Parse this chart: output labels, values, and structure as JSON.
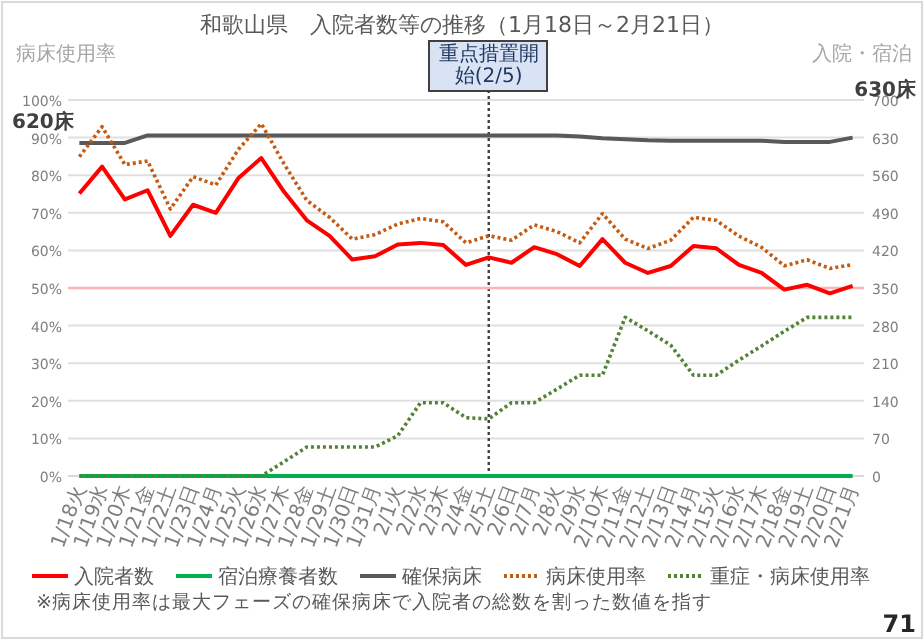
{
  "chart_data": {
    "type": "line",
    "title": "和歌山県　入院者数等の推移（1月18日～2月21日）",
    "ylabel": "病床使用率",
    "y2label": "入院・宿泊",
    "categories": [
      "1/18火",
      "1/19水",
      "1/20木",
      "1/21金",
      "1/22土",
      "1/23日",
      "1/24月",
      "1/25火",
      "1/26水",
      "1/27木",
      "1/28金",
      "1/29土",
      "1/30日",
      "1/31月",
      "2/1火",
      "2/2水",
      "2/3木",
      "2/4金",
      "2/5土",
      "2/6日",
      "2/7月",
      "2/8火",
      "2/9水",
      "2/10木",
      "2/11金",
      "2/12土",
      "2/13日",
      "2/14月",
      "2/15火",
      "2/16水",
      "2/17木",
      "2/18金",
      "2/19土",
      "2/20日",
      "2/21月"
    ],
    "series": [
      {
        "name": "入院者数",
        "color": "#ff0000",
        "axis": "y2",
        "line_style": "solid",
        "values": [
          526,
          576,
          515,
          532,
          447,
          505,
          490,
          555,
          592,
          529,
          476,
          447,
          403,
          409,
          431,
          434,
          430,
          393,
          407,
          397,
          426,
          413,
          391,
          441,
          397,
          378,
          391,
          428,
          424,
          393,
          378,
          347,
          356,
          340,
          354
        ]
      },
      {
        "name": "宿泊療養者数",
        "color": "#00b050",
        "axis": "y2",
        "line_style": "solid",
        "values": [
          0,
          0,
          0,
          0,
          0,
          0,
          0,
          0,
          0,
          0,
          0,
          0,
          0,
          0,
          0,
          0,
          0,
          0,
          0,
          0,
          0,
          0,
          0,
          0,
          0,
          0,
          0,
          0,
          0,
          0,
          0,
          0,
          0,
          0,
          0
        ]
      },
      {
        "name": "確保病床",
        "color": "#595959",
        "axis": "y2",
        "line_style": "solid",
        "values": [
          620,
          620,
          620,
          634,
          634,
          634,
          634,
          634,
          634,
          634,
          634,
          634,
          634,
          634,
          634,
          634,
          634,
          634,
          634,
          634,
          634,
          634,
          632,
          629,
          627,
          625,
          624,
          624,
          624,
          624,
          624,
          622,
          622,
          622,
          630
        ]
      },
      {
        "name": "病床使用率",
        "color": "#c55a11",
        "axis": "y",
        "line_style": "dotted",
        "values": [
          84.9,
          92.9,
          82.8,
          83.8,
          71,
          79.6,
          77.4,
          86.9,
          93.7,
          83,
          73.3,
          68.8,
          63,
          64.2,
          67,
          68.5,
          67.6,
          62,
          63.9,
          62.7,
          66.8,
          65,
          62,
          69.8,
          63,
          60.5,
          62.7,
          68.8,
          68,
          63.8,
          60.8,
          55.9,
          57.5,
          55.2,
          56.2
        ]
      },
      {
        "name": "重症・病床使用率",
        "color": "#548235",
        "axis": "y",
        "line_style": "dotted",
        "values": [
          0,
          0,
          0,
          0,
          0,
          0,
          0,
          0,
          0,
          3.8,
          7.7,
          7.7,
          7.7,
          7.7,
          10.7,
          19.5,
          19.5,
          15.5,
          15.2,
          19.5,
          19.5,
          23.1,
          26.8,
          26.8,
          42.2,
          38.6,
          34.8,
          26.8,
          26.8,
          30.8,
          34.6,
          38.5,
          42.2,
          42.2,
          42.2
        ]
      }
    ],
    "ylim": [
      0,
      100
    ],
    "yticks": [
      {
        "value": 0,
        "label": "0%"
      },
      {
        "value": 10,
        "label": "10%"
      },
      {
        "value": 20,
        "label": "20%"
      },
      {
        "value": 30,
        "label": "30%"
      },
      {
        "value": 40,
        "label": "40%"
      },
      {
        "value": 50,
        "label": "50%"
      },
      {
        "value": 60,
        "label": "60%"
      },
      {
        "value": 70,
        "label": "70%"
      },
      {
        "value": 80,
        "label": "80%"
      },
      {
        "value": 90,
        "label": "90%"
      },
      {
        "value": 100,
        "label": "100%"
      }
    ],
    "y2lim": [
      0,
      700
    ],
    "y2ticks": [
      0,
      70,
      140,
      210,
      280,
      350,
      420,
      490,
      560,
      630,
      700
    ],
    "ref_lines": [
      {
        "axis": "x",
        "value": "2/5土",
        "label": "重点措置開始(2/5)",
        "color": "#404040",
        "line_style": "dotted"
      },
      {
        "axis": "y",
        "value": 50,
        "color": "#ffb3b3",
        "line_style": "solid"
      }
    ],
    "annotations": [
      "620床",
      "630床",
      "※病床使用率は最大フェーズの確保病床で入院者の総数を割った数値を指す",
      "71"
    ],
    "grid": "y",
    "legend": "bottom",
    "marker": "none"
  }
}
